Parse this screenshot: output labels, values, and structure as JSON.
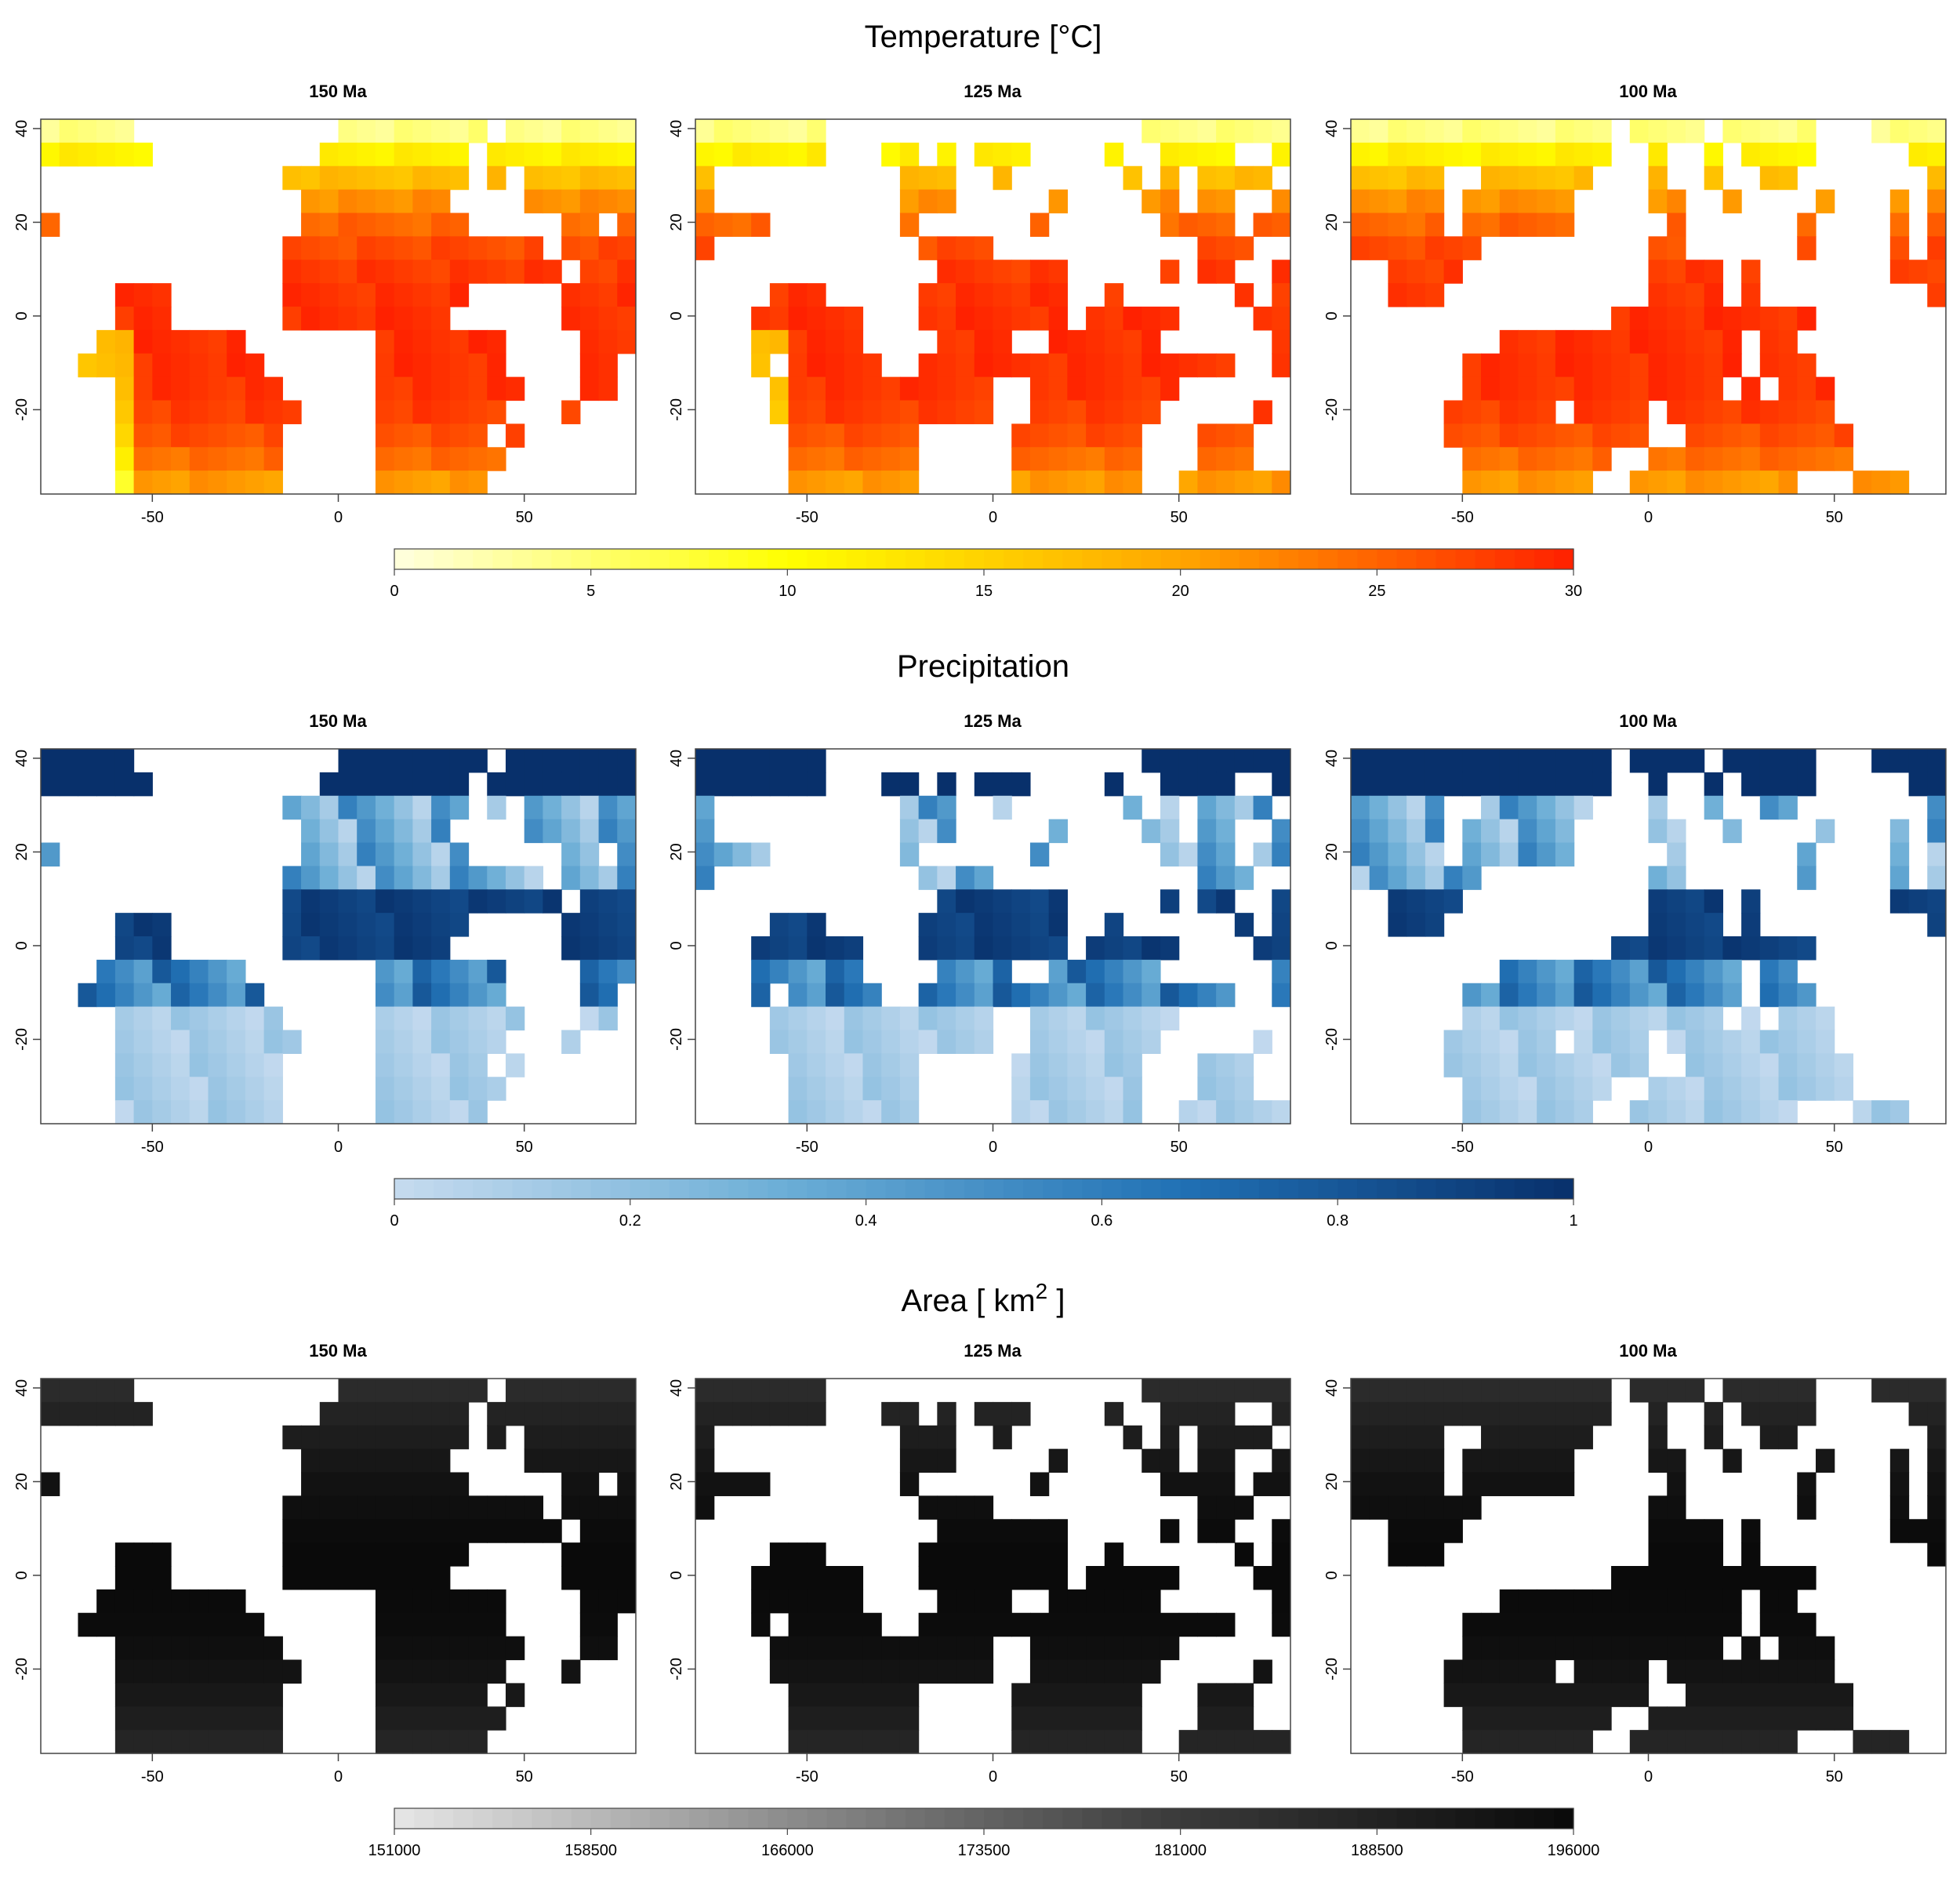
{
  "chart_data": [
    {
      "type": "heatmap",
      "title": "Temperature [°C]",
      "panels": [
        "150 Ma",
        "125 Ma",
        "100 Ma"
      ],
      "xlim": [
        -80,
        80
      ],
      "ylim": [
        -38,
        42
      ],
      "x_ticks": [
        -50,
        0,
        50
      ],
      "y_ticks": [
        40,
        20,
        0,
        -20
      ],
      "legend": {
        "min": 0,
        "max": 30,
        "tick_labels": [
          "0",
          "5",
          "10",
          "15",
          "20",
          "25",
          "30"
        ],
        "colors": [
          "#ffffe0",
          "#ffff00",
          "#ffa500",
          "#ff2000"
        ]
      }
    },
    {
      "type": "heatmap",
      "title": "Precipitation",
      "panels": [
        "150 Ma",
        "125 Ma",
        "100 Ma"
      ],
      "xlim": [
        -80,
        80
      ],
      "ylim": [
        -38,
        42
      ],
      "x_ticks": [
        -50,
        0,
        50
      ],
      "y_ticks": [
        40,
        20,
        0,
        -20
      ],
      "legend": {
        "min": 0,
        "max": 1,
        "tick_labels": [
          "0",
          "0.2",
          "0.4",
          "0.6",
          "0.8",
          "1"
        ],
        "colors": [
          "#c6dbef",
          "#6baed6",
          "#2171b5",
          "#08306b"
        ]
      }
    },
    {
      "type": "heatmap",
      "title_main": "Area [ km",
      "title_sup": "2",
      "title_end": " ]",
      "panels": [
        "150 Ma",
        "125 Ma",
        "100 Ma"
      ],
      "xlim": [
        -80,
        80
      ],
      "ylim": [
        -38,
        42
      ],
      "x_ticks": [
        -50,
        0,
        50
      ],
      "y_ticks": [
        40,
        20,
        0,
        -20
      ],
      "legend": {
        "min": 151000,
        "max": 196000,
        "tick_labels": [
          "151000",
          "158500",
          "166000",
          "173500",
          "181000",
          "188500",
          "196000"
        ],
        "colors": [
          "#e6e6e6",
          "#8c8c8c",
          "#3a3a3a",
          "#0a0a0a"
        ]
      }
    }
  ]
}
